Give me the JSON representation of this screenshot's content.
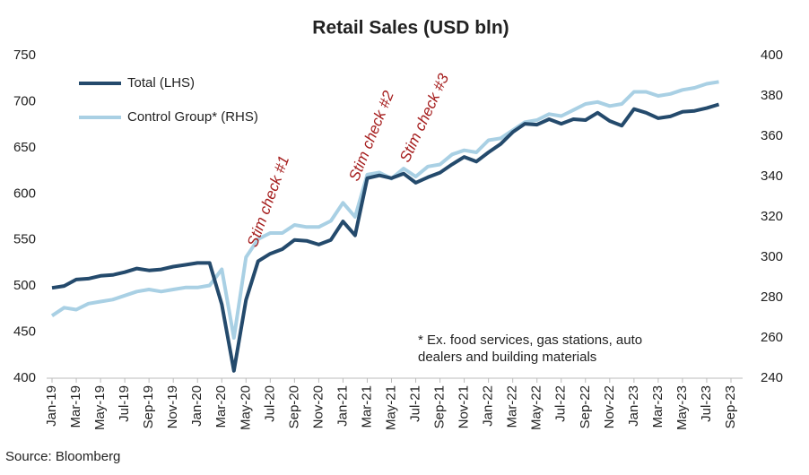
{
  "chart_data": {
    "type": "line",
    "title": "Retail Sales (USD bln)",
    "categories": [
      "Jan-19",
      null,
      "Mar-19",
      null,
      "May-19",
      null,
      "Jul-19",
      null,
      "Sep-19",
      null,
      "Nov-19",
      null,
      "Jan-20",
      null,
      "Mar-20",
      null,
      "May-20",
      null,
      "Jul-20",
      null,
      "Sep-20",
      null,
      "Nov-20",
      null,
      "Jan-21",
      null,
      "Mar-21",
      null,
      "May-21",
      null,
      "Jul-21",
      null,
      "Sep-21",
      null,
      "Nov-21",
      null,
      "Jan-22",
      null,
      "Mar-22",
      null,
      "May-22",
      null,
      "Jul-22",
      null,
      "Sep-22",
      null,
      "Nov-22",
      null,
      "Jan-23",
      null,
      "Mar-23",
      null,
      "May-23",
      null,
      "Jul-23",
      null,
      "Sep-23"
    ],
    "series": [
      {
        "name": "Total (LHS)",
        "color": "#244a6c",
        "axis": "y",
        "values": [
          498,
          500,
          507,
          508,
          511,
          512,
          515,
          519,
          517,
          518,
          521,
          523,
          525,
          525,
          480,
          408,
          485,
          527,
          535,
          540,
          550,
          549,
          545,
          550,
          570,
          555,
          617,
          620,
          617,
          622,
          612,
          618,
          623,
          632,
          640,
          635,
          645,
          654,
          667,
          676,
          675,
          681,
          676,
          681,
          680,
          688,
          679,
          674,
          692,
          688,
          682,
          684,
          689,
          690,
          693,
          697,
          null
        ]
      },
      {
        "name": "Control Group* (RHS)",
        "color": "#a9d0e4",
        "axis": "y2",
        "values": [
          271,
          275,
          274,
          277,
          278,
          279,
          281,
          283,
          284,
          283,
          284,
          285,
          285,
          286,
          294,
          260,
          300,
          309,
          312,
          312,
          316,
          315,
          315,
          318,
          327,
          320,
          341,
          342,
          339,
          344,
          340,
          345,
          346,
          351,
          353,
          352,
          358,
          359,
          363,
          367,
          368,
          371,
          370,
          373,
          376,
          377,
          375,
          376,
          382,
          382,
          380,
          381,
          383,
          384,
          386,
          387,
          null
        ]
      }
    ],
    "ylim": [
      400,
      750
    ],
    "yticks": [
      400,
      450,
      500,
      550,
      600,
      650,
      700,
      750
    ],
    "y2lim": [
      240,
      400
    ],
    "y2ticks": [
      240,
      260,
      280,
      300,
      320,
      340,
      360,
      380,
      400
    ],
    "annotations": [
      "Stim check #1",
      "Stim check #2",
      "Stim check #3"
    ],
    "footnote": [
      "* Ex. food services, gas stations, auto",
      "dealers and building materials"
    ],
    "source": "Source: Bloomberg",
    "legend": "upper left"
  }
}
